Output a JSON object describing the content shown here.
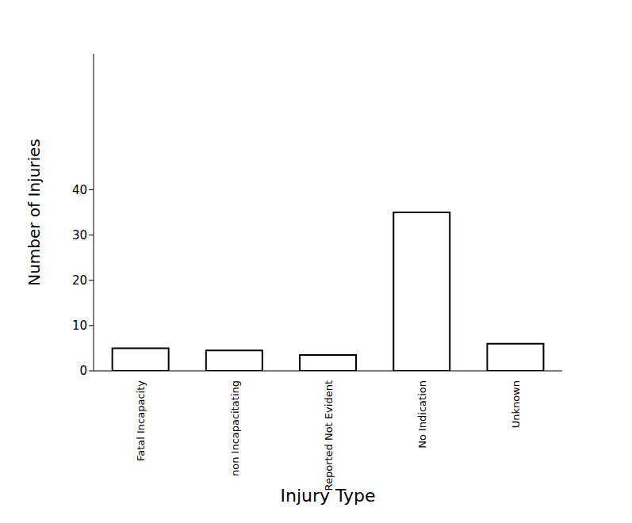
{
  "chart_data": {
    "type": "bar",
    "x_label": "Injury Type",
    "y_label": "Number of Injuries",
    "categories": [
      "Fatal Incapacity",
      "non Incapacitating",
      "Reported Not Evident",
      "No Indication",
      "Unknown"
    ],
    "values": [
      5,
      4.5,
      3.5,
      35,
      6
    ],
    "color": "#ffffff",
    "ylim": [
      0,
      70
    ],
    "yticks": [
      0,
      10,
      20,
      30,
      40
    ],
    "grid": false
  }
}
